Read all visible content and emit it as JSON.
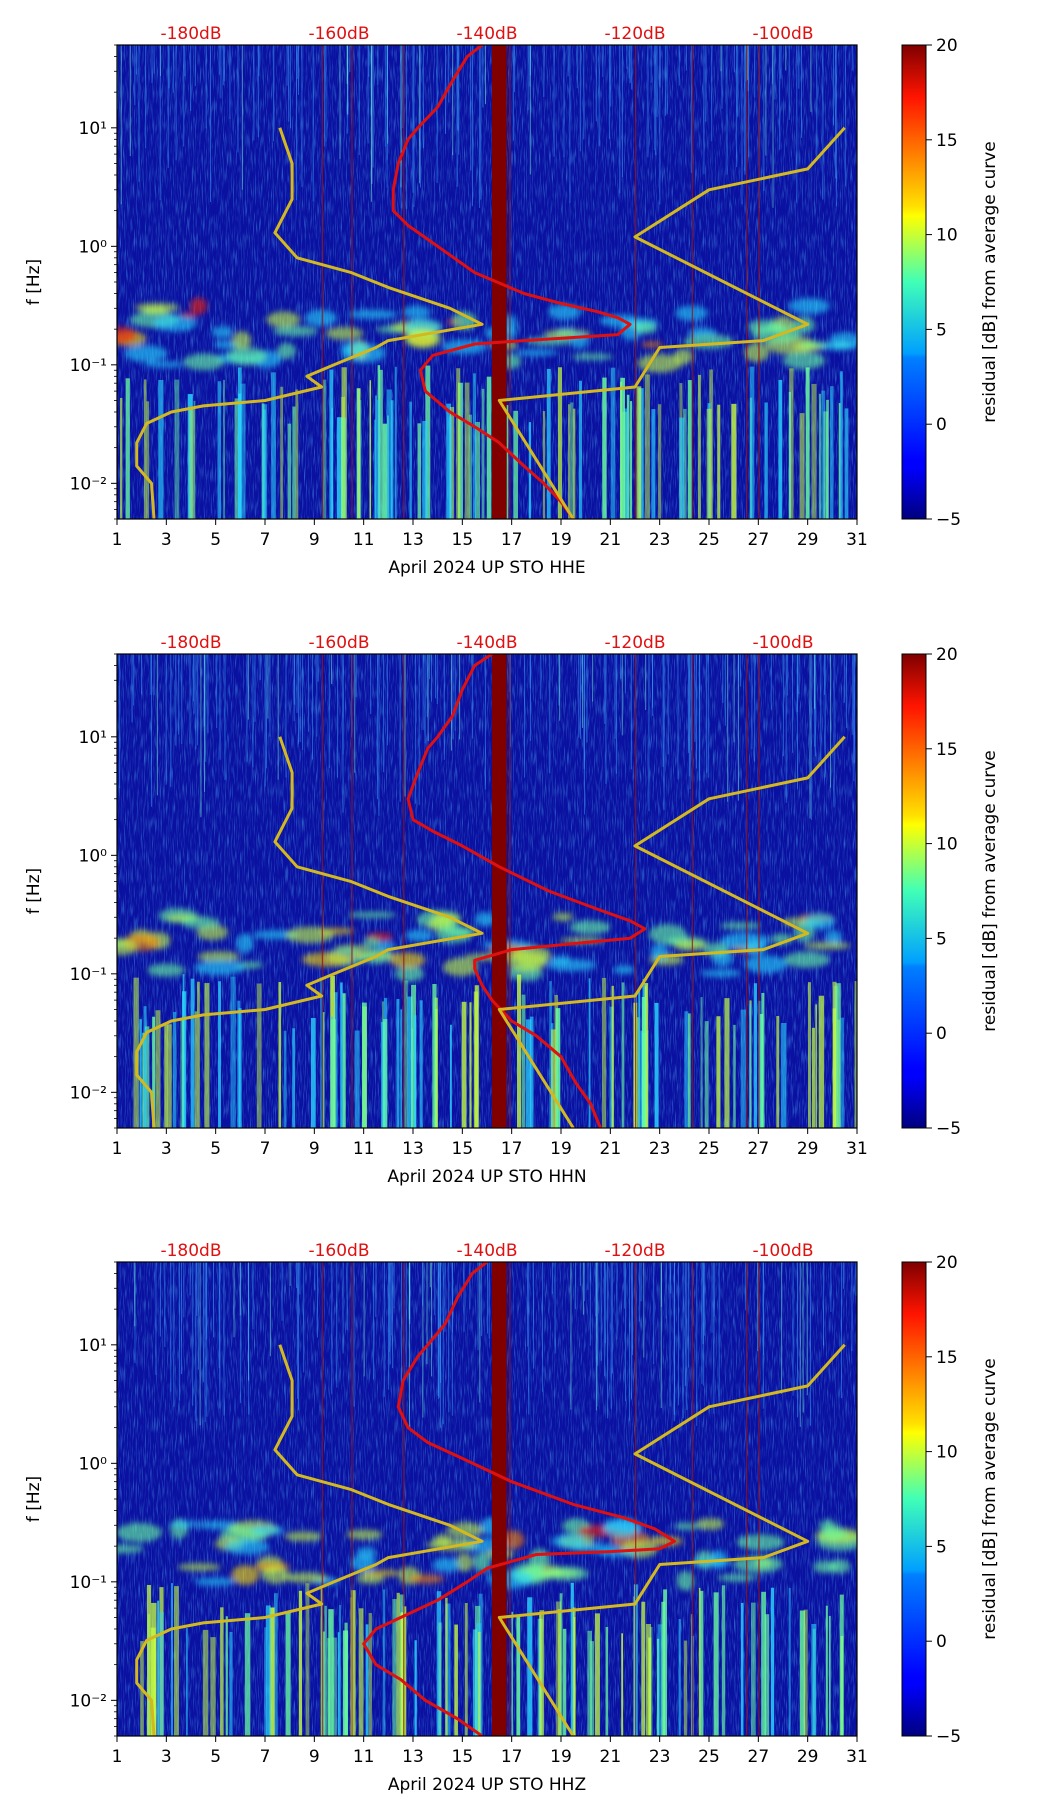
{
  "chart_data": [
    {
      "type": "heatmap",
      "xlabel": "April 2024 UP STO  HHE",
      "ylabel": "f [Hz]",
      "x_ticks": [
        "1",
        "3",
        "5",
        "7",
        "9",
        "11",
        "13",
        "15",
        "17",
        "19",
        "21",
        "23",
        "25",
        "27",
        "29",
        "31"
      ],
      "y_ticks": [
        "10⁻²",
        "10⁻¹",
        "10⁰",
        "10¹"
      ],
      "top_ticks": [
        "-180dB",
        "-160dB",
        "-140dB",
        "-120dB",
        "-100dB"
      ],
      "xlim": [
        1,
        31
      ],
      "ylim_hz": [
        0.005,
        50
      ],
      "y_scale": "log",
      "colorbar": {
        "label": "residual [dB] from average curve",
        "ticks": [
          "−5",
          "0",
          "5",
          "10",
          "15",
          "20"
        ],
        "vmin": -5,
        "vmax": 20,
        "colormap": "jet"
      },
      "series": [
        {
          "color": "#e01010",
          "points": [
            [
              15.8,
              50
            ],
            [
              15.2,
              40
            ],
            [
              14.6,
              25
            ],
            [
              14.0,
              15
            ],
            [
              13.2,
              10
            ],
            [
              12.8,
              8
            ],
            [
              12.4,
              5
            ],
            [
              12.2,
              3
            ],
            [
              12.2,
              2
            ],
            [
              12.8,
              1.5
            ],
            [
              14.0,
              1.0
            ],
            [
              15.5,
              0.6
            ],
            [
              17.5,
              0.4
            ],
            [
              19.0,
              0.33
            ],
            [
              20.5,
              0.28
            ],
            [
              21.3,
              0.25
            ],
            [
              21.8,
              0.22
            ],
            [
              21.3,
              0.18
            ],
            [
              19.5,
              0.17
            ],
            [
              17.5,
              0.16
            ],
            [
              15.5,
              0.15
            ],
            [
              13.8,
              0.12
            ],
            [
              13.3,
              0.09
            ],
            [
              13.5,
              0.06
            ],
            [
              14.5,
              0.04
            ],
            [
              15.5,
              0.03
            ],
            [
              16.5,
              0.022
            ],
            [
              17.5,
              0.014
            ],
            [
              18.3,
              0.01
            ],
            [
              19.0,
              0.007
            ],
            [
              19.5,
              0.005
            ]
          ]
        },
        {
          "color": "#d4b820",
          "points": [
            [
              7.6,
              10
            ],
            [
              8.1,
              5
            ],
            [
              8.1,
              2.5
            ],
            [
              7.4,
              1.3
            ],
            [
              8.3,
              0.8
            ],
            [
              10.5,
              0.6
            ],
            [
              12.0,
              0.45
            ],
            [
              14.5,
              0.3
            ],
            [
              15.8,
              0.22
            ],
            [
              12.0,
              0.16
            ],
            [
              11.5,
              0.14
            ],
            [
              9.8,
              0.1
            ],
            [
              8.7,
              0.08
            ],
            [
              9.3,
              0.065
            ],
            [
              7.0,
              0.05
            ],
            [
              4.5,
              0.045
            ],
            [
              3.2,
              0.04
            ],
            [
              2.2,
              0.032
            ],
            [
              1.8,
              0.022
            ],
            [
              1.8,
              0.014
            ],
            [
              2.4,
              0.01
            ],
            [
              2.5,
              0.005
            ],
            [
              null,
              null
            ],
            [
              30.5,
              10
            ],
            [
              29,
              4.5
            ],
            [
              25,
              3
            ],
            [
              22,
              1.2
            ],
            [
              29,
              0.22
            ],
            [
              27.2,
              0.16
            ],
            [
              23,
              0.14
            ],
            [
              22,
              0.065
            ],
            [
              16.5,
              0.05
            ],
            [
              19.5,
              0.005
            ]
          ]
        }
      ]
    },
    {
      "type": "heatmap",
      "xlabel": "April 2024 UP STO  HHN",
      "ylabel": "f [Hz]",
      "x_ticks": [
        "1",
        "3",
        "5",
        "7",
        "9",
        "11",
        "13",
        "15",
        "17",
        "19",
        "21",
        "23",
        "25",
        "27",
        "29",
        "31"
      ],
      "y_ticks": [
        "10⁻²",
        "10⁻¹",
        "10⁰",
        "10¹"
      ],
      "top_ticks": [
        "-180dB",
        "-160dB",
        "-140dB",
        "-120dB",
        "-100dB"
      ],
      "xlim": [
        1,
        31
      ],
      "ylim_hz": [
        0.005,
        50
      ],
      "y_scale": "log",
      "colorbar": {
        "label": "residual [dB] from average curve",
        "ticks": [
          "−5",
          "0",
          "5",
          "10",
          "15",
          "20"
        ],
        "vmin": -5,
        "vmax": 20,
        "colormap": "jet"
      },
      "series": [
        {
          "color": "#e01010",
          "points": [
            [
              16.2,
              50
            ],
            [
              15.5,
              40
            ],
            [
              15.0,
              25
            ],
            [
              14.6,
              15
            ],
            [
              14.0,
              10
            ],
            [
              13.6,
              8
            ],
            [
              13.2,
              5
            ],
            [
              12.8,
              3
            ],
            [
              13.0,
              2
            ],
            [
              13.8,
              1.6
            ],
            [
              15.0,
              1.2
            ],
            [
              16.5,
              0.8
            ],
            [
              18.5,
              0.5
            ],
            [
              20.5,
              0.35
            ],
            [
              21.8,
              0.28
            ],
            [
              22.4,
              0.24
            ],
            [
              21.8,
              0.2
            ],
            [
              19.5,
              0.18
            ],
            [
              17.0,
              0.16
            ],
            [
              15.5,
              0.13
            ],
            [
              15.5,
              0.11
            ],
            [
              15.8,
              0.08
            ],
            [
              16.2,
              0.06
            ],
            [
              17.0,
              0.04
            ],
            [
              18.0,
              0.03
            ],
            [
              19.0,
              0.02
            ],
            [
              19.6,
              0.012
            ],
            [
              20.2,
              0.008
            ],
            [
              20.6,
              0.005
            ]
          ]
        },
        {
          "color": "#d4b820",
          "points": [
            [
              7.6,
              10
            ],
            [
              8.1,
              5
            ],
            [
              8.1,
              2.5
            ],
            [
              7.4,
              1.3
            ],
            [
              8.3,
              0.8
            ],
            [
              10.5,
              0.6
            ],
            [
              12.0,
              0.45
            ],
            [
              14.5,
              0.3
            ],
            [
              15.8,
              0.22
            ],
            [
              12.0,
              0.16
            ],
            [
              11.5,
              0.14
            ],
            [
              9.8,
              0.1
            ],
            [
              8.7,
              0.08
            ],
            [
              9.3,
              0.065
            ],
            [
              7.0,
              0.05
            ],
            [
              4.5,
              0.045
            ],
            [
              3.2,
              0.04
            ],
            [
              2.2,
              0.032
            ],
            [
              1.8,
              0.022
            ],
            [
              1.8,
              0.014
            ],
            [
              2.4,
              0.01
            ],
            [
              2.5,
              0.005
            ],
            [
              null,
              null
            ],
            [
              30.5,
              10
            ],
            [
              29,
              4.5
            ],
            [
              25,
              3
            ],
            [
              22,
              1.2
            ],
            [
              29,
              0.22
            ],
            [
              27.2,
              0.16
            ],
            [
              23,
              0.14
            ],
            [
              22,
              0.065
            ],
            [
              16.5,
              0.05
            ],
            [
              19.5,
              0.005
            ]
          ]
        }
      ]
    },
    {
      "type": "heatmap",
      "xlabel": "April 2024 UP STO  HHZ",
      "ylabel": "f [Hz]",
      "x_ticks": [
        "1",
        "3",
        "5",
        "7",
        "9",
        "11",
        "13",
        "15",
        "17",
        "19",
        "21",
        "23",
        "25",
        "27",
        "29",
        "31"
      ],
      "y_ticks": [
        "10⁻²",
        "10⁻¹",
        "10⁰",
        "10¹"
      ],
      "top_ticks": [
        "-180dB",
        "-160dB",
        "-140dB",
        "-120dB",
        "-100dB"
      ],
      "xlim": [
        1,
        31
      ],
      "ylim_hz": [
        0.005,
        50
      ],
      "y_scale": "log",
      "colorbar": {
        "label": "residual [dB] from average curve",
        "ticks": [
          "−5",
          "0",
          "5",
          "10",
          "15",
          "20"
        ],
        "vmin": -5,
        "vmax": 20,
        "colormap": "jet"
      },
      "series": [
        {
          "color": "#e01010",
          "points": [
            [
              16.0,
              50
            ],
            [
              15.4,
              40
            ],
            [
              14.8,
              25
            ],
            [
              14.3,
              15
            ],
            [
              13.6,
              10
            ],
            [
              13.2,
              8
            ],
            [
              12.6,
              5
            ],
            [
              12.4,
              3
            ],
            [
              12.8,
              2
            ],
            [
              13.6,
              1.5
            ],
            [
              15.0,
              1.1
            ],
            [
              17.0,
              0.7
            ],
            [
              19.5,
              0.45
            ],
            [
              21.5,
              0.35
            ],
            [
              22.8,
              0.28
            ],
            [
              23.6,
              0.22
            ],
            [
              23.0,
              0.19
            ],
            [
              21.0,
              0.18
            ],
            [
              18.0,
              0.17
            ],
            [
              16.0,
              0.13
            ],
            [
              15.2,
              0.1
            ],
            [
              14.0,
              0.07
            ],
            [
              12.5,
              0.05
            ],
            [
              11.5,
              0.04
            ],
            [
              11.0,
              0.03
            ],
            [
              11.5,
              0.02
            ],
            [
              12.5,
              0.015
            ],
            [
              13.5,
              0.01
            ],
            [
              14.8,
              0.007
            ],
            [
              15.8,
              0.005
            ]
          ]
        },
        {
          "color": "#d4b820",
          "points": [
            [
              7.6,
              10
            ],
            [
              8.1,
              5
            ],
            [
              8.1,
              2.5
            ],
            [
              7.4,
              1.3
            ],
            [
              8.3,
              0.8
            ],
            [
              10.5,
              0.6
            ],
            [
              12.0,
              0.45
            ],
            [
              14.5,
              0.3
            ],
            [
              15.8,
              0.22
            ],
            [
              12.0,
              0.16
            ],
            [
              11.5,
              0.14
            ],
            [
              9.8,
              0.1
            ],
            [
              8.7,
              0.08
            ],
            [
              9.3,
              0.065
            ],
            [
              7.0,
              0.05
            ],
            [
              4.5,
              0.045
            ],
            [
              3.2,
              0.04
            ],
            [
              2.2,
              0.032
            ],
            [
              1.8,
              0.022
            ],
            [
              1.8,
              0.014
            ],
            [
              2.4,
              0.01
            ],
            [
              2.5,
              0.005
            ],
            [
              null,
              null
            ],
            [
              30.5,
              10
            ],
            [
              29,
              4.5
            ],
            [
              25,
              3
            ],
            [
              22,
              1.2
            ],
            [
              29,
              0.22
            ],
            [
              27.2,
              0.16
            ],
            [
              23,
              0.14
            ],
            [
              22,
              0.065
            ],
            [
              16.5,
              0.05
            ],
            [
              19.5,
              0.005
            ]
          ]
        }
      ]
    }
  ]
}
